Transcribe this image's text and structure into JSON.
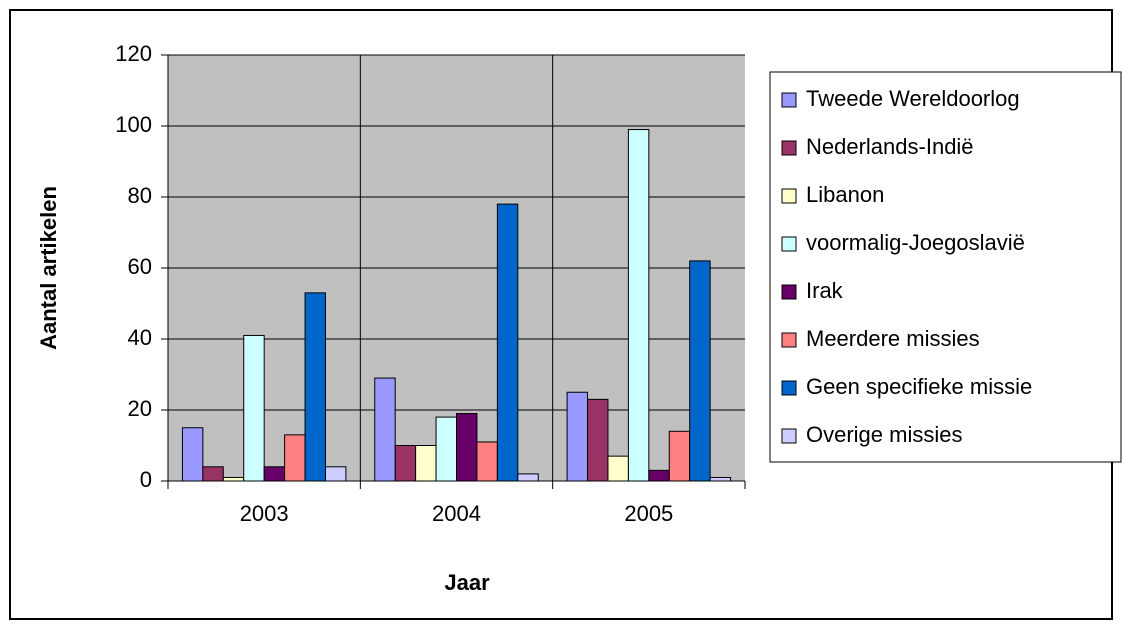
{
  "chart_data": {
    "type": "bar",
    "x_label": "Jaar",
    "y_label": "Aantal artikelen",
    "categories": [
      "2003",
      "2004",
      "2005"
    ],
    "series": [
      {
        "name": "Tweede Wereldoorlog",
        "color": "#9999ff",
        "values": [
          15,
          29,
          25
        ]
      },
      {
        "name": "Nederlands-Indië",
        "color": "#993366",
        "values": [
          4,
          10,
          23
        ]
      },
      {
        "name": "Libanon",
        "color": "#ffffcc",
        "values": [
          1,
          10,
          7
        ]
      },
      {
        "name": "voormalig-Joegoslavië",
        "color": "#ccffff",
        "values": [
          41,
          18,
          99
        ]
      },
      {
        "name": "Irak",
        "color": "#660066",
        "values": [
          4,
          19,
          3
        ]
      },
      {
        "name": "Meerdere missies",
        "color": "#ff8080",
        "values": [
          13,
          11,
          14
        ]
      },
      {
        "name": "Geen specifieke missie",
        "color": "#0066cc",
        "values": [
          53,
          78,
          62
        ]
      },
      {
        "name": "Overige missies",
        "color": "#ccccff",
        "values": [
          4,
          2,
          1
        ]
      }
    ],
    "ylim": [
      0,
      120
    ],
    "yticks": [
      0,
      20,
      40,
      60,
      80,
      100,
      120
    ],
    "grid": true,
    "legend": "right"
  }
}
